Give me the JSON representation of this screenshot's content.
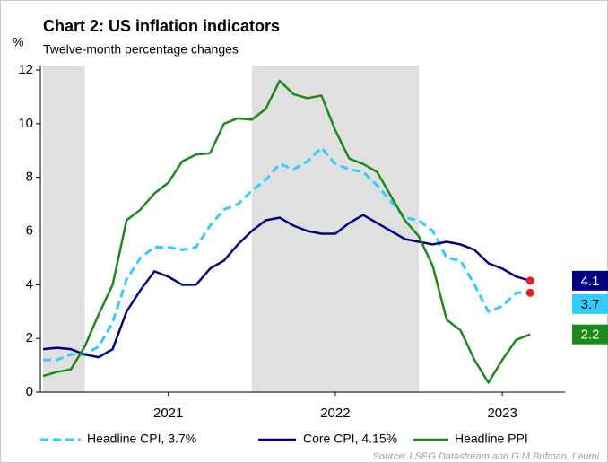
{
  "chart_data": {
    "type": "line",
    "title": "Chart 2: US inflation indicators",
    "subtitle": "Twelve-month percentage changes",
    "y_unit": "%",
    "source": "Source: LSEG Datastream  and G.M.Bufman, Leumi",
    "x": [
      2020.75,
      2020.8333,
      2020.9167,
      2021.0,
      2021.0833,
      2021.1667,
      2021.25,
      2021.3333,
      2021.4167,
      2021.5,
      2021.5833,
      2021.6667,
      2021.75,
      2021.8333,
      2021.9167,
      2022.0,
      2022.0833,
      2022.1667,
      2022.25,
      2022.3333,
      2022.4167,
      2022.5,
      2022.5833,
      2022.6667,
      2022.75,
      2022.8333,
      2022.9167,
      2023.0,
      2023.0833,
      2023.1667,
      2023.25,
      2023.3333,
      2023.4167,
      2023.5,
      2023.5833,
      2023.6667
    ],
    "xlim": [
      2020.75,
      2023.875
    ],
    "xticks": [
      {
        "value": 2021.5,
        "label": "2021"
      },
      {
        "value": 2022.5,
        "label": "2022"
      },
      {
        "value": 2023.5,
        "label": "2023"
      }
    ],
    "shaded": [
      [
        2020.75,
        2021.0
      ],
      [
        2022.0,
        2023.0
      ]
    ],
    "ylim": [
      0,
      12
    ],
    "yticks": [
      0,
      2,
      4,
      6,
      8,
      10,
      12
    ],
    "series": [
      {
        "name": "Headline CPI, 3.7%",
        "color": "#33ccff",
        "dashed": true,
        "end_label": "3.7",
        "end_dot": true,
        "values": [
          1.2,
          1.2,
          1.4,
          1.4,
          1.7,
          2.6,
          4.2,
          5.0,
          5.4,
          5.4,
          5.3,
          5.4,
          6.2,
          6.8,
          7.0,
          7.5,
          7.9,
          8.5,
          8.3,
          8.6,
          9.1,
          8.5,
          8.3,
          8.2,
          7.7,
          7.1,
          6.5,
          6.4,
          6.0,
          5.0,
          4.9,
          4.0,
          3.0,
          3.2,
          3.7,
          3.7
        ]
      },
      {
        "name": "Core CPI, 4.15%",
        "color": "#000080",
        "dashed": false,
        "end_label": "4.1",
        "end_dot": true,
        "values": [
          1.6,
          1.65,
          1.6,
          1.4,
          1.3,
          1.6,
          3.0,
          3.8,
          4.5,
          4.3,
          4.0,
          4.0,
          4.6,
          4.9,
          5.5,
          6.0,
          6.4,
          6.5,
          6.2,
          6.0,
          5.9,
          5.9,
          6.3,
          6.6,
          6.3,
          6.0,
          5.7,
          5.6,
          5.5,
          5.6,
          5.5,
          5.3,
          4.8,
          4.6,
          4.3,
          4.15
        ]
      },
      {
        "name": "Headline PPI",
        "color": "#1a8a1a",
        "dashed": false,
        "end_label": "2.2",
        "end_dot": false,
        "values": [
          0.6,
          0.75,
          0.85,
          1.7,
          2.9,
          4.0,
          6.4,
          6.8,
          7.4,
          7.8,
          8.6,
          8.85,
          8.9,
          10.0,
          10.2,
          10.15,
          10.55,
          11.6,
          11.1,
          10.95,
          11.05,
          9.75,
          8.7,
          8.5,
          8.2,
          7.3,
          6.4,
          5.8,
          4.7,
          2.7,
          2.3,
          1.2,
          0.35,
          1.2,
          1.95,
          2.15
        ]
      }
    ]
  }
}
